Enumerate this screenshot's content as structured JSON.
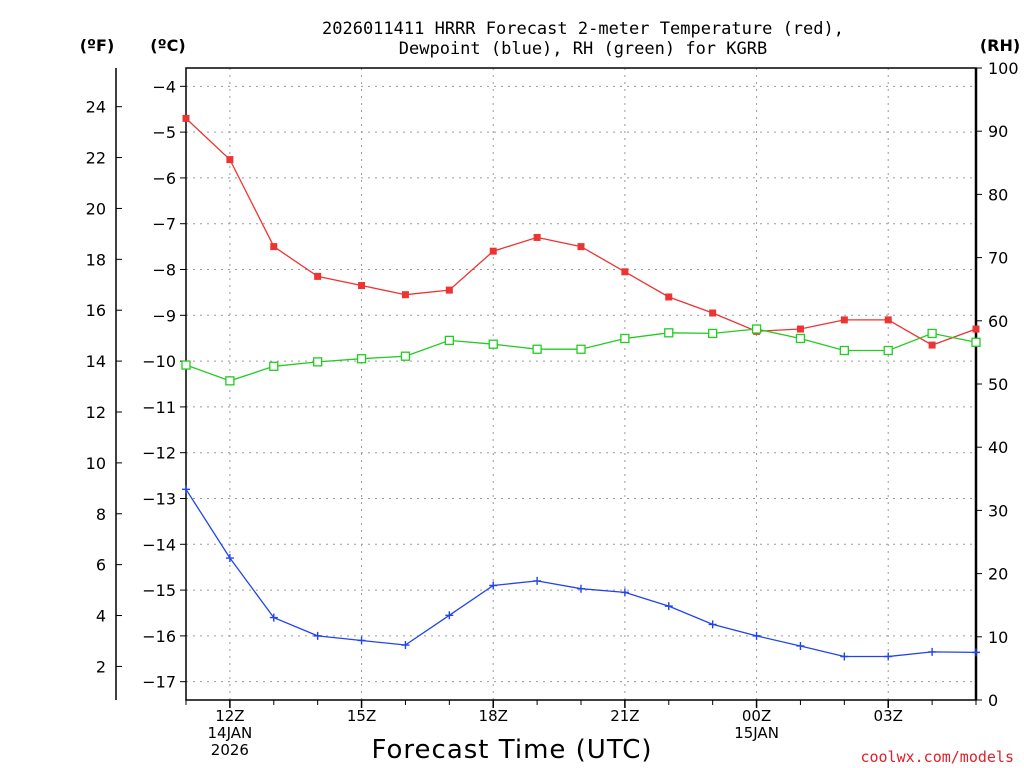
{
  "chart_data": {
    "type": "line",
    "title_line1": "2026011411 HRRR Forecast 2-meter Temperature (red),",
    "title_line2": "Dewpoint (blue), RH (green) for KGRB",
    "xlabel": "Forecast Time (UTC)",
    "left_axis_f_label": "(ºF)",
    "left_axis_c_label": "(ºC)",
    "right_axis_label": "(RH)",
    "credit": "coolwx.com/models",
    "x_hours": [
      11,
      12,
      13,
      14,
      15,
      16,
      17,
      18,
      19,
      20,
      21,
      22,
      23,
      24,
      25,
      26,
      27,
      28,
      29
    ],
    "x_range": [
      11,
      29
    ],
    "x_ticks": [
      {
        "hour": 12,
        "lines": [
          "12Z",
          "14JAN",
          "2026"
        ]
      },
      {
        "hour": 15,
        "lines": [
          "15Z"
        ]
      },
      {
        "hour": 18,
        "lines": [
          "18Z"
        ]
      },
      {
        "hour": 21,
        "lines": [
          "21Z"
        ]
      },
      {
        "hour": 24,
        "lines": [
          "00Z",
          "15JAN"
        ]
      },
      {
        "hour": 27,
        "lines": [
          "03Z"
        ]
      }
    ],
    "celsius_range": [
      -17.4,
      -3.6
    ],
    "celsius_ticks": [
      -4,
      -5,
      -6,
      -7,
      -8,
      -9,
      -10,
      -11,
      -12,
      -13,
      -14,
      -15,
      -16,
      -17
    ],
    "fahrenheit_ticks": [
      24,
      22,
      20,
      18,
      16,
      14,
      12,
      10,
      8,
      6,
      4,
      2
    ],
    "rh_range": [
      0,
      100
    ],
    "rh_ticks": [
      100,
      90,
      80,
      70,
      60,
      50,
      40,
      30,
      20,
      10,
      0
    ],
    "series": [
      {
        "name": "Temperature",
        "axis": "celsius",
        "color": "#ee3333",
        "marker": "filled-square",
        "values": [
          -4.7,
          -5.6,
          -7.5,
          -8.15,
          -8.35,
          -8.55,
          -8.45,
          -7.6,
          -7.3,
          -7.5,
          -8.05,
          -8.6,
          -8.95,
          -9.35,
          -9.3,
          -9.1,
          -9.1,
          -9.65,
          -9.3
        ]
      },
      {
        "name": "Dewpoint",
        "axis": "celsius",
        "color": "#2244ee",
        "marker": "plus",
        "values": [
          -12.8,
          -14.3,
          -15.6,
          -16.0,
          -16.1,
          -16.2,
          -15.55,
          -14.9,
          -14.8,
          -14.97,
          -15.05,
          -15.35,
          -15.75,
          -16.0,
          -16.22,
          -16.45,
          -16.45,
          -16.35,
          -16.36
        ]
      },
      {
        "name": "RH",
        "axis": "rh",
        "color": "#22cc22",
        "marker": "open-square",
        "values": [
          53.0,
          50.5,
          52.8,
          53.5,
          54.0,
          54.4,
          56.9,
          56.3,
          55.5,
          55.5,
          57.2,
          58.1,
          58.0,
          58.7,
          57.2,
          55.3,
          55.3,
          58.0,
          56.6
        ]
      }
    ]
  }
}
